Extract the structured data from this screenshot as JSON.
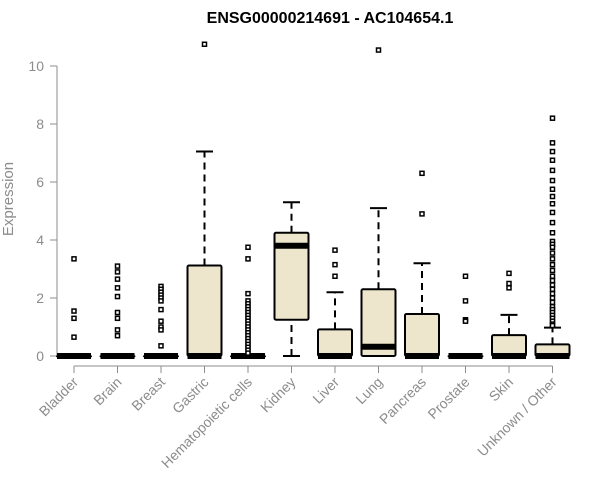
{
  "chart_data": {
    "type": "box",
    "title": "ENSG00000214691 - AC104654.1",
    "xlabel": "",
    "ylabel": "Expression",
    "ylim": [
      0,
      11
    ],
    "yticks": [
      0,
      2,
      4,
      6,
      8,
      10
    ],
    "box_fill": "#ede6cc",
    "categories": [
      "Bladder",
      "Brain",
      "Breast",
      "Gastric",
      "Hematopoietic cells",
      "Kidney",
      "Liver",
      "Lung",
      "Pancreas",
      "Prostate",
      "Skin",
      "Unknown / Other"
    ],
    "boxes": [
      {
        "name": "Bladder",
        "whisker_low": 0,
        "q1": 0,
        "median": 0,
        "q3": 0,
        "whisker_high": 0,
        "outliers": [
          3.35,
          1.55,
          1.3,
          0.65
        ]
      },
      {
        "name": "Brain",
        "whisker_low": 0,
        "q1": 0,
        "median": 0,
        "q3": 0,
        "whisker_high": 0,
        "outliers": [
          3.1,
          2.9,
          2.65,
          2.35,
          2.05,
          1.5,
          1.3,
          0.9,
          0.7
        ]
      },
      {
        "name": "Breast",
        "whisker_low": 0,
        "q1": 0,
        "median": 0,
        "q3": 0,
        "whisker_high": 0,
        "outliers": [
          2.4,
          2.3,
          2.2,
          2.1,
          2.0,
          1.9,
          1.6,
          1.2,
          1.0,
          0.9,
          0.35
        ]
      },
      {
        "name": "Gastric",
        "whisker_low": 0,
        "q1": 0,
        "median": 0,
        "q3": 3.12,
        "whisker_high": 7.05,
        "outliers": [
          10.75
        ]
      },
      {
        "name": "Hematopoietic cells",
        "whisker_low": 0,
        "q1": 0,
        "median": 0,
        "q3": 0,
        "whisker_high": 0,
        "outliers": [
          3.75,
          3.35,
          2.15,
          1.9,
          1.8,
          1.7,
          1.6,
          1.5,
          1.4,
          1.3,
          1.2,
          1.1,
          1.0,
          0.9,
          0.8,
          0.7,
          0.6,
          0.5,
          0.4,
          0.3,
          0.2,
          0.1
        ]
      },
      {
        "name": "Kidney",
        "whisker_low": 0,
        "q1": 1.25,
        "median": 3.8,
        "q3": 4.25,
        "whisker_high": 5.3,
        "outliers": []
      },
      {
        "name": "Liver",
        "whisker_low": 0,
        "q1": 0,
        "median": 0,
        "q3": 0.92,
        "whisker_high": 2.2,
        "outliers": [
          3.65,
          3.15,
          2.75
        ]
      },
      {
        "name": "Lung",
        "whisker_low": 0,
        "q1": 0,
        "median": 0.32,
        "q3": 2.3,
        "whisker_high": 5.1,
        "outliers": [
          10.55
        ]
      },
      {
        "name": "Pancreas",
        "whisker_low": 0,
        "q1": 0,
        "median": 0,
        "q3": 1.45,
        "whisker_high": 3.2,
        "outliers": [
          6.3,
          4.9
        ]
      },
      {
        "name": "Prostate",
        "whisker_low": 0,
        "q1": 0,
        "median": 0,
        "q3": 0,
        "whisker_high": 0,
        "outliers": [
          2.75,
          1.9,
          1.25,
          1.2
        ]
      },
      {
        "name": "Skin",
        "whisker_low": 0,
        "q1": 0,
        "median": 0,
        "q3": 0.72,
        "whisker_high": 1.42,
        "outliers": [
          2.85,
          2.5,
          2.35
        ]
      },
      {
        "name": "Unknown / Other",
        "whisker_low": 0,
        "q1": 0,
        "median": 0,
        "q3": 0.4,
        "whisker_high": 0.98,
        "outliers": [
          8.2,
          7.35,
          7.05,
          6.75,
          6.4,
          6.05,
          5.75,
          5.5,
          5.25,
          4.95,
          4.6,
          4.25,
          3.95,
          3.85,
          3.75,
          3.55,
          3.35,
          3.15,
          2.95,
          2.75,
          2.6,
          2.45,
          2.3,
          2.15,
          2.0,
          1.85,
          1.7,
          1.6,
          1.5,
          1.4,
          1.3,
          1.2,
          1.1,
          1.05
        ]
      }
    ]
  }
}
